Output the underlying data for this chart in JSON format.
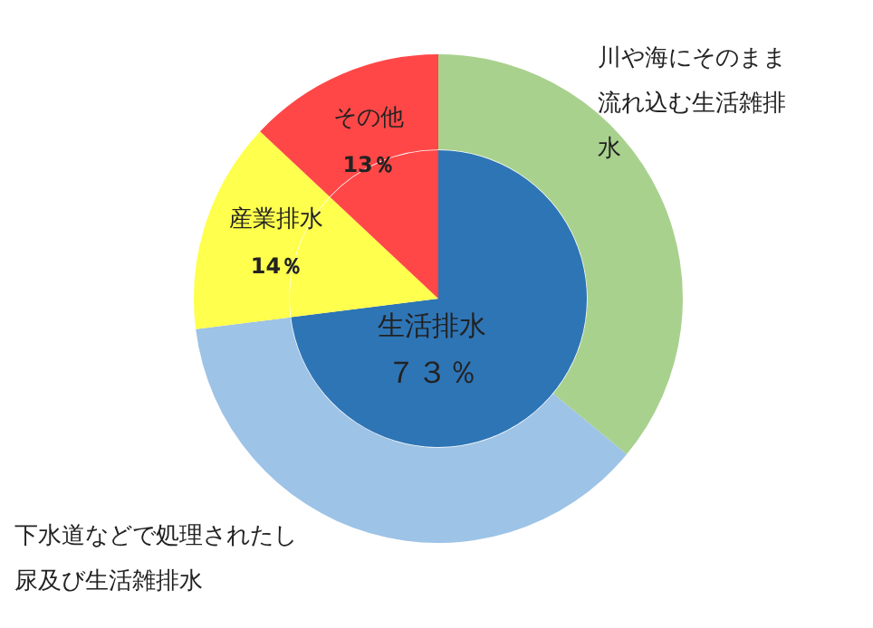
{
  "chart_data": [
    {
      "type": "pie",
      "legend": false,
      "categories": [
        "生活排水",
        "産業排水",
        "その他"
      ],
      "values": [
        73,
        14,
        13
      ],
      "colors": [
        "#2e75b6",
        "#ffff4d",
        "#ff4747"
      ],
      "value_labels": [
        "７３％",
        "14％",
        "13％"
      ]
    },
    {
      "type": "donut",
      "legend": false,
      "categories": [
        "川や海にそのまま流れ込む生活雑排水",
        "下水道などで処理されたし尿及び生活雑排水",
        null,
        null
      ],
      "values": [
        36,
        37,
        14,
        13
      ],
      "colors": [
        "#a9d18e",
        "#9dc3e6",
        "#ffff4d",
        "#ff4747"
      ]
    }
  ]
}
